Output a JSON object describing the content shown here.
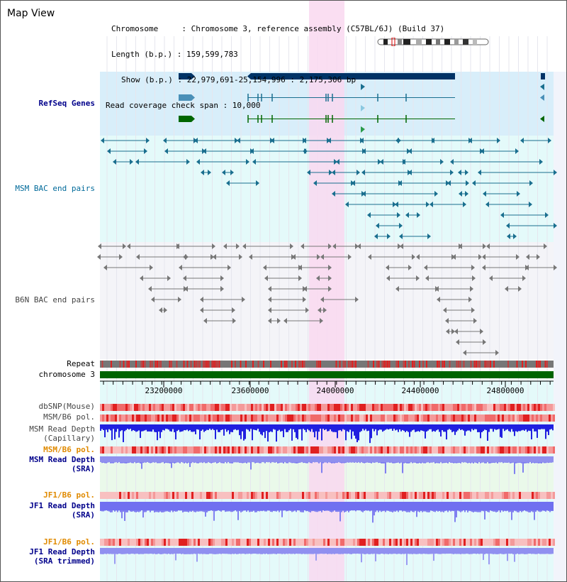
{
  "title": "Map View",
  "info": {
    "chromosome": "Chromosome     : Chromosome 3, reference assembly (C57BL/6J) (Build 37)",
    "length": "Length (b.p.) : 159,599,783",
    "show": "Show (b.p.) : 22,979,691-25,154,996 : 2,175,306 bp",
    "span": "Read coverage check span : 10,000"
  },
  "tracks": {
    "refseq": "RefSeq Genes",
    "msm_bac": "MSM BAC end pairs",
    "b6n_bac": "B6N BAC end pairs",
    "repeat": "Repeat",
    "chromosome": "chromosome 3",
    "dbsnp": "dbSNP(Mouse)",
    "msm_b6_pol_1": "MSM/B6 pol.",
    "msm_depth_cap_1": "MSM Read Depth",
    "msm_depth_cap_2": "(Capillary)",
    "msm_b6_pol_2": "MSM/B6 pol.",
    "msm_depth_sra_1": "MSM Read Depth",
    "msm_depth_sra_2": "(SRA)",
    "jf1_b6_pol_1": "JF1/B6 pol.",
    "jf1_depth_sra_1": "JF1 Read Depth",
    "jf1_depth_sra_2": "(SRA)",
    "jf1_b6_pol_2": "JF1/B6 pol.",
    "jf1_depth_trim_1": "JF1 Read Depth",
    "jf1_depth_trim_2": "(SRA trimmed)"
  },
  "axis": {
    "ticks": [
      "23200000",
      "23600000",
      "24000000",
      "24400000",
      "24800000"
    ]
  },
  "colors": {
    "refseq_bg": "#d8eefa",
    "msm_bac_bg": "#e4fafa",
    "b6n_bac_bg": "#f4f4f8",
    "highlight": "#f9d8f0",
    "chromosome": "#006400",
    "navy_gene": "#003366",
    "teal": "#1a6f8f",
    "depth_blue": "#2020e0",
    "depth_light": "#8080f0"
  }
}
